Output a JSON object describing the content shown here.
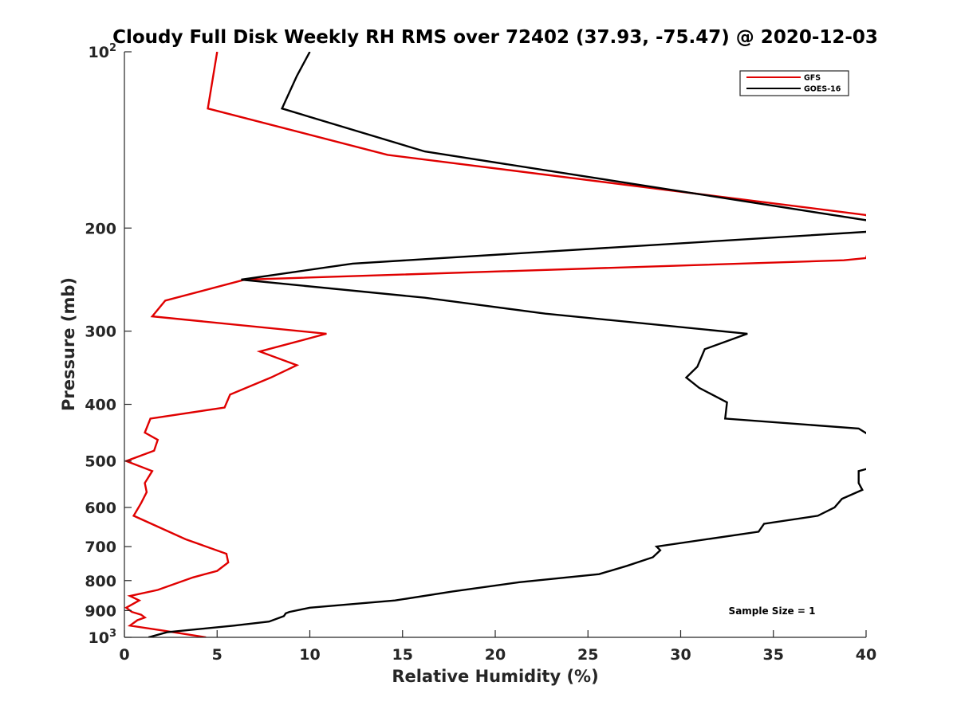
{
  "chart_data": {
    "type": "line",
    "title": "Cloudy Full Disk Weekly RH RMS over 72402 (37.93, -75.47) @ 2020-12-03",
    "xlabel": "Relative Humidity (%)",
    "ylabel": "Pressure (mb)",
    "xlim": [
      0,
      40
    ],
    "ylim": [
      100,
      1000
    ],
    "y_scale": "log",
    "y_reversed": true,
    "grid": false,
    "legend_position": "top-right",
    "x_ticks": [
      "0",
      "5",
      "10",
      "15",
      "20",
      "25",
      "30",
      "35",
      "40"
    ],
    "y_ticks": [
      {
        "value": 100,
        "base": "10",
        "exp": "2"
      },
      {
        "value": 200,
        "label": "200"
      },
      {
        "value": 300,
        "label": "300"
      },
      {
        "value": 400,
        "label": "400"
      },
      {
        "value": 500,
        "label": "500"
      },
      {
        "value": 600,
        "label": "600"
      },
      {
        "value": 700,
        "label": "700"
      },
      {
        "value": 800,
        "label": "800"
      },
      {
        "value": 900,
        "label": "900"
      },
      {
        "value": 1000,
        "base": "10",
        "exp": "3"
      }
    ],
    "annotation": "Sample Size = 1",
    "series": [
      {
        "name": "GFS",
        "color": "#e00000",
        "points": [
          [
            5.0,
            100
          ],
          [
            4.5,
            125
          ],
          [
            14.2,
            150
          ],
          [
            40,
            190
          ],
          [
            40.5,
            200
          ],
          [
            40,
            225
          ],
          [
            38.8,
            227
          ],
          [
            6.5,
            245
          ],
          [
            2.2,
            266
          ],
          [
            1.5,
            283
          ],
          [
            10.9,
            303
          ],
          [
            7.3,
            325
          ],
          [
            9.3,
            343
          ],
          [
            7.9,
            360
          ],
          [
            5.7,
            385
          ],
          [
            5.4,
            405
          ],
          [
            1.4,
            423
          ],
          [
            1.1,
            447
          ],
          [
            1.8,
            460
          ],
          [
            1.6,
            480
          ],
          [
            0.1,
            500
          ],
          [
            1.5,
            520
          ],
          [
            1.1,
            545
          ],
          [
            1.2,
            565
          ],
          [
            0.9,
            590
          ],
          [
            0.5,
            620
          ],
          [
            3.3,
            680
          ],
          [
            5.5,
            720
          ],
          [
            5.6,
            745
          ],
          [
            5.0,
            770
          ],
          [
            3.7,
            790
          ],
          [
            1.8,
            830
          ],
          [
            0.3,
            850
          ],
          [
            0.8,
            865
          ],
          [
            0.1,
            890
          ],
          [
            0.4,
            905
          ],
          [
            0.9,
            915
          ],
          [
            1.1,
            925
          ],
          [
            0.7,
            935
          ],
          [
            0.3,
            955
          ],
          [
            2.2,
            975
          ],
          [
            4.4,
            1000
          ]
        ]
      },
      {
        "name": "GOES-16",
        "color": "#000000",
        "points": [
          [
            10.0,
            100
          ],
          [
            9.3,
            110
          ],
          [
            8.5,
            125
          ],
          [
            16.2,
            148
          ],
          [
            40.5,
            195
          ],
          [
            40,
            203
          ],
          [
            12.3,
            230
          ],
          [
            6.3,
            245
          ],
          [
            16.2,
            263
          ],
          [
            22.7,
            280
          ],
          [
            33.6,
            303
          ],
          [
            31.3,
            322
          ],
          [
            30.9,
            345
          ],
          [
            30.3,
            360
          ],
          [
            31.0,
            375
          ],
          [
            32.5,
            397
          ],
          [
            32.4,
            423
          ],
          [
            39.6,
            440
          ],
          [
            40.1,
            450
          ],
          [
            40.1,
            515
          ],
          [
            39.6,
            520
          ],
          [
            39.6,
            545
          ],
          [
            39.8,
            560
          ],
          [
            38.7,
            580
          ],
          [
            38.3,
            600
          ],
          [
            37.4,
            620
          ],
          [
            34.5,
            640
          ],
          [
            34.2,
            660
          ],
          [
            28.7,
            700
          ],
          [
            28.9,
            710
          ],
          [
            28.5,
            730
          ],
          [
            27.1,
            755
          ],
          [
            25.6,
            780
          ],
          [
            21.3,
            805
          ],
          [
            17.7,
            835
          ],
          [
            14.6,
            865
          ],
          [
            10.0,
            890
          ],
          [
            8.9,
            905
          ],
          [
            8.7,
            910
          ],
          [
            8.6,
            920
          ],
          [
            7.8,
            940
          ],
          [
            5.9,
            955
          ],
          [
            2.3,
            980
          ],
          [
            1.3,
            1000
          ]
        ]
      }
    ]
  }
}
